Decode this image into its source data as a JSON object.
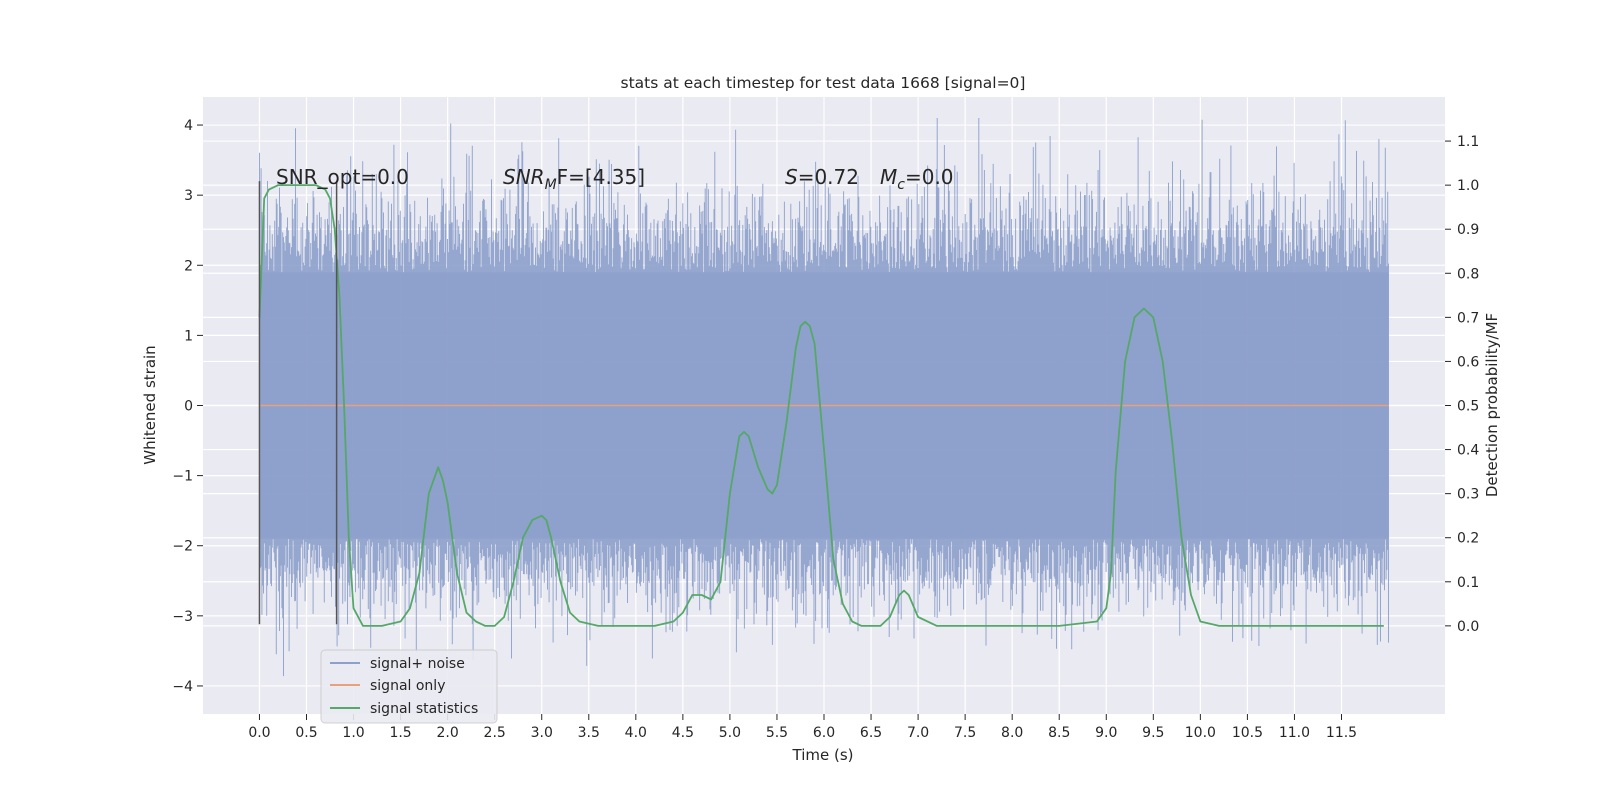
{
  "chart_data": {
    "type": "line",
    "title": "stats at each timestep for test data 1668 [signal=0]",
    "xlabel": "Time (s)",
    "ylabel": "Whitened strain",
    "ylabel_right": "Detection probability/MF",
    "xlim": [
      -0.6,
      12.6
    ],
    "ylim_left": [
      -4.4,
      4.4
    ],
    "ylim_right": [
      -0.2,
      1.2
    ],
    "grid": true,
    "legend_position": "lower-left",
    "x_ticks": [
      "0.0",
      "0.5",
      "1.0",
      "1.5",
      "2.0",
      "2.5",
      "3.0",
      "3.5",
      "4.0",
      "4.5",
      "5.0",
      "5.5",
      "6.0",
      "6.5",
      "7.0",
      "7.5",
      "8.0",
      "8.5",
      "9.0",
      "9.5",
      "10.0",
      "10.5",
      "11.0",
      "11.5"
    ],
    "y_left_ticks": [
      "4",
      "3",
      "2",
      "1",
      "0",
      "−1",
      "−2",
      "−3",
      "−4"
    ],
    "y_right_ticks": [
      "1.1",
      "1.0",
      "0.9",
      "0.8",
      "0.7",
      "0.6",
      "0.5",
      "0.4",
      "0.3",
      "0.2",
      "0.1",
      "0.0"
    ],
    "annotations": {
      "snr_opt": "SNR_opt=0.0",
      "snr_mf_sym": "SNR",
      "snr_mf_sub": "M",
      "snr_mf_rest": "F=[4.35]",
      "s_sym": "S",
      "s_val": "=0.72",
      "mc_sym": "M",
      "mc_sub": "c",
      "mc_val": "=0.0"
    },
    "vertical_markers": [
      0.0,
      0.82
    ],
    "series": [
      {
        "name": "signal+ noise",
        "color": "#8da0cb",
        "x_range": [
          0.0,
          12.0
        ],
        "typical_band": [
          -1.9,
          1.9
        ],
        "extreme_range": [
          -4.0,
          4.1
        ]
      },
      {
        "name": "signal only",
        "color": "#e8a07f",
        "x": [
          0.0,
          12.0
        ],
        "y": [
          0.0,
          0.0
        ]
      },
      {
        "name": "signal statistics",
        "color": "#55a868",
        "x": [
          0.0,
          0.05,
          0.1,
          0.2,
          0.3,
          0.45,
          0.6,
          0.7,
          0.75,
          0.8,
          0.85,
          0.9,
          0.95,
          1.0,
          1.1,
          1.3,
          1.5,
          1.6,
          1.7,
          1.8,
          1.9,
          1.95,
          2.0,
          2.1,
          2.2,
          2.3,
          2.4,
          2.5,
          2.6,
          2.7,
          2.8,
          2.9,
          3.0,
          3.05,
          3.1,
          3.2,
          3.3,
          3.4,
          3.6,
          3.8,
          4.0,
          4.2,
          4.4,
          4.5,
          4.6,
          4.7,
          4.8,
          4.9,
          5.0,
          5.1,
          5.15,
          5.2,
          5.3,
          5.4,
          5.45,
          5.5,
          5.6,
          5.7,
          5.75,
          5.8,
          5.85,
          5.9,
          6.0,
          6.1,
          6.2,
          6.3,
          6.4,
          6.6,
          6.7,
          6.8,
          6.85,
          6.9,
          7.0,
          7.2,
          7.5,
          8.0,
          8.5,
          8.9,
          9.0,
          9.05,
          9.1,
          9.2,
          9.3,
          9.35,
          9.4,
          9.5,
          9.6,
          9.7,
          9.8,
          9.9,
          10.0,
          10.2,
          10.5,
          11.0,
          11.5,
          11.95
        ],
        "y": [
          0.7,
          0.97,
          0.99,
          1.0,
          1.0,
          1.0,
          1.0,
          0.99,
          0.97,
          0.9,
          0.75,
          0.5,
          0.2,
          0.04,
          0.0,
          0.0,
          0.01,
          0.04,
          0.12,
          0.3,
          0.36,
          0.33,
          0.28,
          0.12,
          0.03,
          0.01,
          0.0,
          0.0,
          0.02,
          0.1,
          0.2,
          0.24,
          0.25,
          0.24,
          0.2,
          0.1,
          0.03,
          0.01,
          0.0,
          0.0,
          0.0,
          0.0,
          0.01,
          0.03,
          0.07,
          0.07,
          0.06,
          0.1,
          0.3,
          0.43,
          0.44,
          0.43,
          0.36,
          0.31,
          0.3,
          0.32,
          0.46,
          0.63,
          0.68,
          0.69,
          0.68,
          0.64,
          0.4,
          0.15,
          0.05,
          0.01,
          0.0,
          0.0,
          0.02,
          0.07,
          0.08,
          0.07,
          0.02,
          0.0,
          0.0,
          0.0,
          0.0,
          0.01,
          0.04,
          0.12,
          0.35,
          0.6,
          0.7,
          0.71,
          0.72,
          0.7,
          0.6,
          0.42,
          0.2,
          0.07,
          0.01,
          0.0,
          0.0,
          0.0,
          0.0,
          0.0
        ]
      }
    ]
  }
}
